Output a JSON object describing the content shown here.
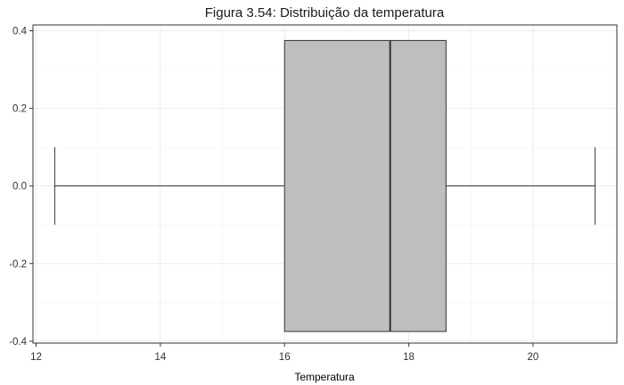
{
  "chart_data": {
    "type": "boxplot",
    "title": "Figura 3.54: Distribuição da temperatura",
    "xlabel": "Temperatura",
    "ylabel": "",
    "orientation": "horizontal",
    "x_ticks": [
      12,
      14,
      16,
      18,
      20
    ],
    "x_tick_labels": [
      "12",
      "14",
      "16",
      "18",
      "20"
    ],
    "y_ticks": [
      0.4,
      0.2,
      0.0,
      -0.2,
      -0.4
    ],
    "y_tick_labels": [
      "0.4",
      "0.2",
      "0.0",
      "-0.2",
      "-0.4"
    ],
    "xlim": [
      11.95,
      21.35
    ],
    "ylim": [
      -0.405,
      0.415
    ],
    "grid": true,
    "box": {
      "min": 12.3,
      "q1": 16.0,
      "median": 17.7,
      "q3": 18.6,
      "max": 21.0,
      "box_ymin": -0.375,
      "box_ymax": 0.375,
      "whisker_cap_half_height": 0.1,
      "fill_color": "#bebebe",
      "line_color": "#333333"
    }
  }
}
